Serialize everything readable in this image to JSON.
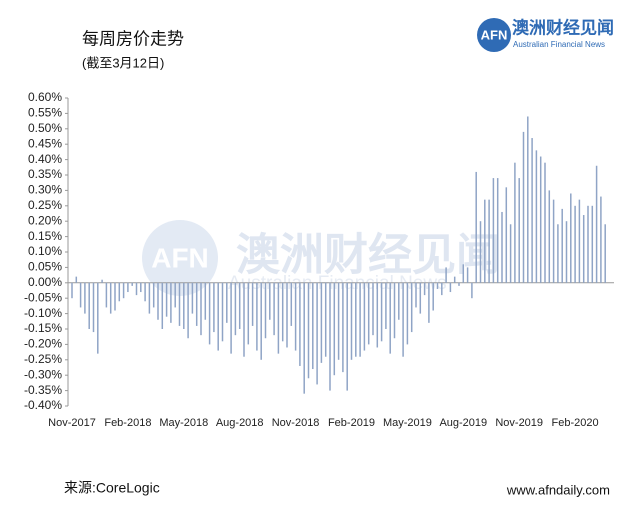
{
  "logo": {
    "mark": "AFN",
    "name": "澳洲财经见闻",
    "english": "Australian Financial News"
  },
  "source": "来源:CoreLogic",
  "website": "www.afndaily.com",
  "chart_data": {
    "type": "bar",
    "title": "每周房价走势",
    "subtitle": "(截至3月12日)",
    "color": "#8fa4c6",
    "categories": [
      "Nov-2017",
      null,
      null,
      null,
      null,
      null,
      null,
      null,
      null,
      null,
      null,
      null,
      null,
      "Feb-2018",
      null,
      null,
      null,
      null,
      null,
      null,
      null,
      null,
      null,
      null,
      null,
      null,
      "May-2018",
      null,
      null,
      null,
      null,
      null,
      null,
      null,
      null,
      null,
      null,
      null,
      null,
      "Aug-2018",
      null,
      null,
      null,
      null,
      null,
      null,
      null,
      null,
      null,
      null,
      null,
      null,
      "Nov-2018",
      null,
      null,
      null,
      null,
      null,
      null,
      null,
      null,
      null,
      null,
      null,
      null,
      "Feb-2019",
      null,
      null,
      null,
      null,
      null,
      null,
      null,
      null,
      null,
      null,
      null,
      null,
      "May-2019",
      null,
      null,
      null,
      null,
      null,
      null,
      null,
      null,
      null,
      null,
      null,
      null,
      "Aug-2019",
      null,
      null,
      null,
      null,
      null,
      null,
      null,
      null,
      null,
      null,
      null,
      null,
      "Nov-2019",
      null,
      null,
      null,
      null,
      null,
      null,
      null,
      null,
      null,
      null,
      null,
      null,
      "Feb-2020",
      null,
      null,
      null,
      null,
      null,
      null,
      null
    ],
    "values": [
      -0.05,
      0.02,
      -0.08,
      -0.1,
      -0.15,
      -0.16,
      -0.23,
      0.01,
      -0.08,
      -0.1,
      -0.09,
      -0.06,
      -0.05,
      -0.03,
      -0.01,
      -0.04,
      -0.03,
      -0.06,
      -0.1,
      -0.08,
      -0.12,
      -0.15,
      -0.11,
      -0.13,
      -0.08,
      -0.14,
      -0.15,
      -0.18,
      -0.1,
      -0.14,
      -0.17,
      -0.12,
      -0.2,
      -0.16,
      -0.22,
      -0.19,
      -0.13,
      -0.23,
      -0.17,
      -0.15,
      -0.24,
      -0.2,
      -0.14,
      -0.22,
      -0.25,
      -0.18,
      -0.12,
      -0.17,
      -0.23,
      -0.19,
      -0.21,
      -0.14,
      -0.22,
      -0.27,
      -0.36,
      -0.31,
      -0.28,
      -0.33,
      -0.26,
      -0.24,
      -0.35,
      -0.3,
      -0.25,
      -0.29,
      -0.35,
      -0.25,
      -0.24,
      -0.24,
      -0.22,
      -0.2,
      -0.17,
      -0.21,
      -0.19,
      -0.15,
      -0.23,
      -0.18,
      -0.12,
      -0.24,
      -0.2,
      -0.16,
      -0.08,
      -0.1,
      -0.04,
      -0.13,
      -0.09,
      -0.02,
      -0.04,
      0.05,
      -0.03,
      0.02,
      -0.01,
      0.06,
      0.05,
      -0.05,
      0.36,
      0.2,
      0.27,
      0.27,
      0.34,
      0.34,
      0.23,
      0.31,
      0.19,
      0.39,
      0.34,
      0.49,
      0.54,
      0.47,
      0.43,
      0.41,
      0.39,
      0.3,
      0.27,
      0.19,
      0.24,
      0.2,
      0.29,
      0.25,
      0.27,
      0.22,
      0.25,
      0.25,
      0.38,
      0.28,
      0.19
    ],
    "ylim": [
      -0.4,
      0.6
    ],
    "yticks": [
      {
        "value": 0.6,
        "label": "0.60%"
      },
      {
        "value": 0.55,
        "label": "0.55%"
      },
      {
        "value": 0.5,
        "label": "0.50%"
      },
      {
        "value": 0.45,
        "label": "0.45%"
      },
      {
        "value": 0.4,
        "label": "0.40%"
      },
      {
        "value": 0.35,
        "label": "0.35%"
      },
      {
        "value": 0.3,
        "label": "0.30%"
      },
      {
        "value": 0.25,
        "label": "0.25%"
      },
      {
        "value": 0.2,
        "label": "0.20%"
      },
      {
        "value": 0.15,
        "label": "0.15%"
      },
      {
        "value": 0.1,
        "label": "0.10%"
      },
      {
        "value": 0.05,
        "label": "0.05%"
      },
      {
        "value": 0,
        "label": "0.00%"
      },
      {
        "value": -0.05,
        "label": "-0.05%"
      },
      {
        "value": -0.1,
        "label": "-0.10%"
      },
      {
        "value": -0.15,
        "label": "-0.15%"
      },
      {
        "value": -0.2,
        "label": "-0.20%"
      },
      {
        "value": -0.25,
        "label": "-0.25%"
      },
      {
        "value": -0.3,
        "label": "-0.30%"
      },
      {
        "value": -0.35,
        "label": "-0.35%"
      },
      {
        "value": -0.4,
        "label": "-0.40%"
      }
    ],
    "grid": false
  }
}
